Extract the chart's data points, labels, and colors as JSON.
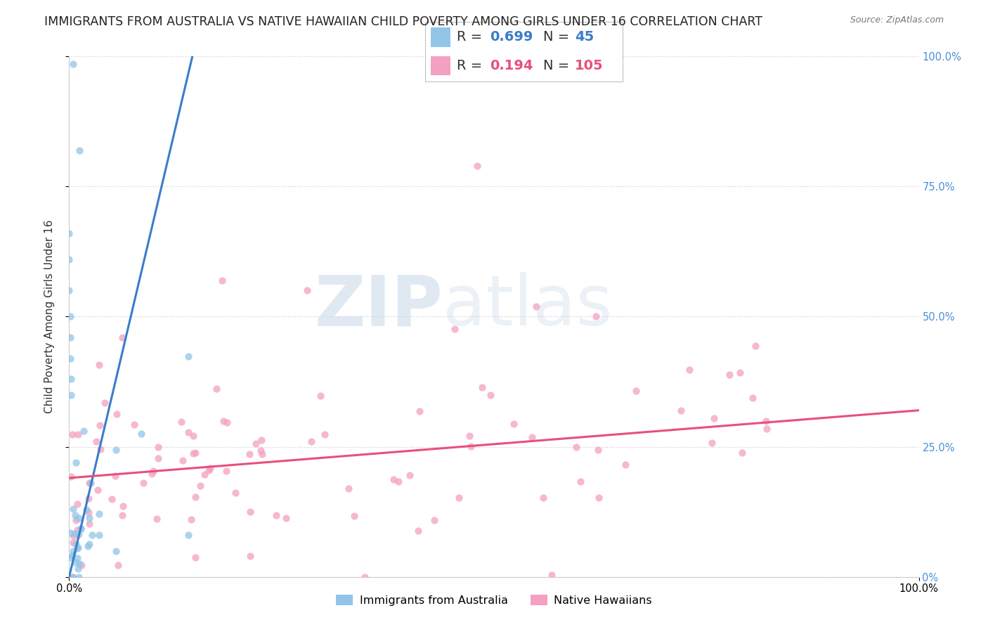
{
  "title": "IMMIGRANTS FROM AUSTRALIA VS NATIVE HAWAIIAN CHILD POVERTY AMONG GIRLS UNDER 16 CORRELATION CHART",
  "source": "Source: ZipAtlas.com",
  "ylabel": "Child Poverty Among Girls Under 16",
  "ytick_labels_right": [
    "0%",
    "25.0%",
    "50.0%",
    "75.0%",
    "100.0%"
  ],
  "legend": [
    {
      "label": "Immigrants from Australia",
      "color": "#92c5e8",
      "R": 0.699,
      "N": 45
    },
    {
      "label": "Native Hawaiians",
      "color": "#f4a0c0",
      "R": 0.194,
      "N": 105
    }
  ],
  "blue_line": {
    "x0": 0.0,
    "x1": 0.145,
    "y0": 0.0,
    "y1": 1.0
  },
  "pink_line": {
    "x0": 0.0,
    "x1": 1.0,
    "y0": 0.19,
    "y1": 0.32
  },
  "watermark_zip": "ZIP",
  "watermark_atlas": "atlas",
  "background_color": "#ffffff",
  "scatter_alpha": 0.75,
  "scatter_size": 55,
  "line_width": 2.2,
  "blue_color": "#92c5e8",
  "pink_color": "#f4a0c0",
  "blue_line_color": "#3a7dc9",
  "pink_line_color": "#e8507a",
  "right_tick_color": "#4a90d9",
  "xmin": 0.0,
  "xmax": 1.0,
  "ymin": 0.0,
  "ymax": 1.0,
  "title_fontsize": 12.5,
  "axis_label_fontsize": 11,
  "tick_fontsize": 10.5,
  "legend_fontsize": 14,
  "legend_R_color_blue": "#3a7dc9",
  "legend_R_color_pink": "#e8507a",
  "legend_N_color_blue": "#3a7dc9",
  "legend_N_color_pink": "#e8507a"
}
